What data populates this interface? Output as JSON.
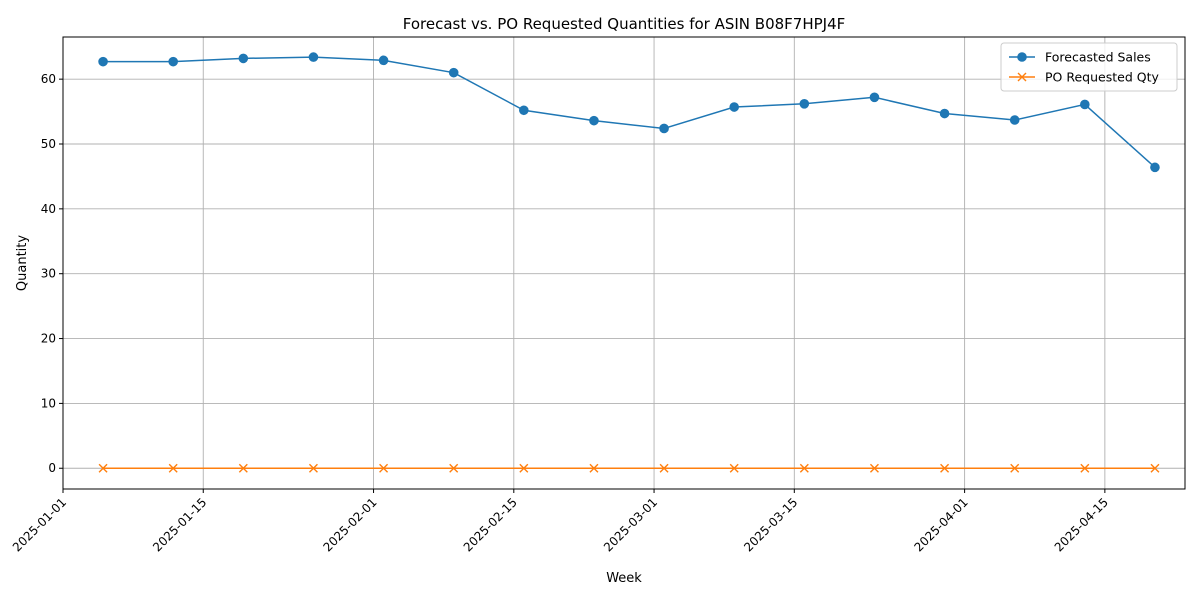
{
  "chart_data": {
    "type": "line",
    "title": "Forecast vs. PO Requested Quantities for ASIN B08F7HPJ4F",
    "xlabel": "Week",
    "ylabel": "Quantity",
    "x_type": "date",
    "x": [
      "2025-01-05",
      "2025-01-12",
      "2025-01-19",
      "2025-01-26",
      "2025-02-02",
      "2025-02-09",
      "2025-02-16",
      "2025-02-23",
      "2025-03-02",
      "2025-03-09",
      "2025-03-16",
      "2025-03-23",
      "2025-03-30",
      "2025-04-06",
      "2025-04-13",
      "2025-04-20"
    ],
    "xlim": [
      "2025-01-01",
      "2025-04-23"
    ],
    "ylim": [
      -3.2,
      66.5
    ],
    "x_ticks": [
      "2025-01-01",
      "2025-01-15",
      "2025-02-01",
      "2025-02-15",
      "2025-03-01",
      "2025-03-15",
      "2025-04-01",
      "2025-04-15"
    ],
    "y_ticks": [
      0,
      10,
      20,
      30,
      40,
      50,
      60
    ],
    "grid": true,
    "legend_position": "top-right",
    "series": [
      {
        "name": "Forecasted Sales",
        "color": "#1f77b4",
        "marker": "circle",
        "values": [
          62.7,
          62.7,
          63.2,
          63.4,
          62.9,
          61.0,
          55.2,
          53.6,
          52.4,
          55.7,
          56.2,
          57.2,
          54.7,
          53.7,
          56.1,
          46.4
        ]
      },
      {
        "name": "PO Requested Qty",
        "color": "#ff7f0e",
        "marker": "x",
        "values": [
          0,
          0,
          0,
          0,
          0,
          0,
          0,
          0,
          0,
          0,
          0,
          0,
          0,
          0,
          0,
          0
        ]
      }
    ]
  }
}
